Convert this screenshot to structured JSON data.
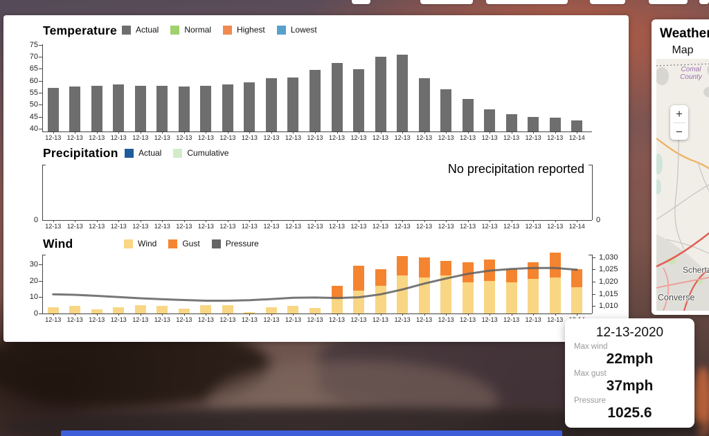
{
  "tooltip": {
    "date": "12-13-2020",
    "max_wind_label": "Max wind",
    "max_wind_value": "22mph",
    "max_gust_label": "Max gust",
    "max_gust_value": "37mph",
    "pressure_label": "Pressure",
    "pressure_value": "1025.6"
  },
  "weather_panel": {
    "title": "Weather",
    "map_label": "Map",
    "zoom_in": "+",
    "zoom_out": "−",
    "map_labels": [
      "Comal County",
      "Schertz",
      "Converse"
    ]
  },
  "chart_data": [
    {
      "type": "bar",
      "title": "Temperature",
      "legend": [
        {
          "label": "Actual",
          "color": "#6e6e6e"
        },
        {
          "label": "Normal",
          "color": "#a2d06e"
        },
        {
          "label": "Highest",
          "color": "#ef8a52"
        },
        {
          "label": "Lowest",
          "color": "#58a0cc"
        }
      ],
      "ylim": [
        40,
        75
      ],
      "y_ticks": [
        75,
        70,
        65,
        60,
        55,
        50,
        45,
        40
      ],
      "categories": [
        "12-13",
        "12-13",
        "12-13",
        "12-13",
        "12-13",
        "12-13",
        "12-13",
        "12-13",
        "12-13",
        "12-13",
        "12-13",
        "12-13",
        "12-13",
        "12-13",
        "12-13",
        "12-13",
        "12-13",
        "12-13",
        "12-13",
        "12-13",
        "12-13",
        "12-13",
        "12-13",
        "12-13",
        "12-14"
      ],
      "series": [
        {
          "name": "Actual",
          "values": [
            57,
            57.5,
            58,
            58.5,
            58,
            58,
            57.5,
            58,
            58.5,
            59.5,
            61,
            61.5,
            64.5,
            67.5,
            65,
            70,
            71,
            61,
            56.5,
            52.5,
            48,
            46,
            45,
            44.5,
            43.5
          ]
        }
      ]
    },
    {
      "type": "bar",
      "title": "Precipitation",
      "legend": [
        {
          "label": "Actual",
          "color": "#1e5b99"
        },
        {
          "label": "Cumulative",
          "color": "#d2ebc8"
        }
      ],
      "message": "No precipitation reported",
      "y_tick_left": "0",
      "y_tick_right": "0",
      "categories": [
        "12-13",
        "12-13",
        "12-13",
        "12-13",
        "12-13",
        "12-13",
        "12-13",
        "12-13",
        "12-13",
        "12-13",
        "12-13",
        "12-13",
        "12-13",
        "12-13",
        "12-13",
        "12-13",
        "12-13",
        "12-13",
        "12-13",
        "12-13",
        "12-13",
        "12-13",
        "12-13",
        "12-13",
        "12-14"
      ],
      "series": []
    },
    {
      "type": "bar+line",
      "title": "Wind",
      "legend": [
        {
          "label": "Wind",
          "color": "#f8d684"
        },
        {
          "label": "Gust",
          "color": "#f58431"
        },
        {
          "label": "Pressure",
          "color": "#666666"
        }
      ],
      "ylim_left": [
        0,
        35
      ],
      "y_ticks_left": [
        30,
        20,
        10,
        0
      ],
      "ylim_right": [
        1008,
        1032
      ],
      "y_ticks_right": [
        "1,030",
        "1,025",
        "1,020",
        "1,015",
        "1,010"
      ],
      "categories": [
        "12-13",
        "12-13",
        "12-13",
        "12-13",
        "12-13",
        "12-13",
        "12-13",
        "12-13",
        "12-13",
        "12-13",
        "12-13",
        "12-13",
        "12-13",
        "12-13",
        "12-13",
        "12-13",
        "12-13",
        "12-13",
        "12-13",
        "12-13",
        "12-13",
        "12-13",
        "12-13",
        "12-13",
        "12-14"
      ],
      "series": [
        {
          "name": "Wind",
          "values": [
            4,
            4.5,
            2.5,
            4,
            5,
            4.5,
            3,
            5,
            5,
            1,
            4,
            4.5,
            3.5,
            9,
            14,
            17,
            23,
            22,
            23,
            19,
            20,
            19,
            21,
            22,
            16
          ]
        },
        {
          "name": "Gust",
          "values": [
            0,
            0,
            0,
            0,
            0,
            0,
            0,
            0,
            0,
            0,
            0,
            0,
            0,
            17,
            29,
            27,
            35,
            34,
            32,
            31,
            33,
            27,
            31,
            37,
            27
          ]
        },
        {
          "name": "Pressure",
          "axis": "right",
          "values": [
            1014.8,
            1014.6,
            1014.2,
            1013.7,
            1013.2,
            1012.8,
            1012.5,
            1012.2,
            1012.2,
            1012.4,
            1012.9,
            1013.4,
            1013.5,
            1013.3,
            1013.6,
            1014.8,
            1016.8,
            1019.2,
            1021.3,
            1023.2,
            1024.5,
            1025.2,
            1025.6,
            1025.6,
            1024.9
          ]
        }
      ]
    }
  ]
}
